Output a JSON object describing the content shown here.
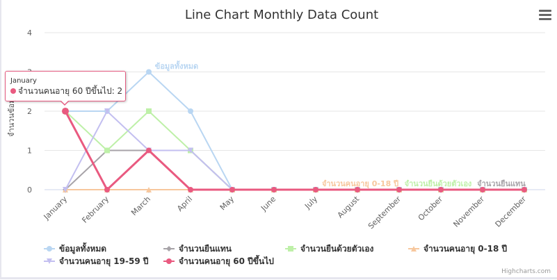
{
  "chart_data": {
    "type": "line",
    "title": "Line Chart Monthly Data Count",
    "ylabel": "จำนวนข้อมูล",
    "xlabel": "",
    "ylim": [
      0,
      4
    ],
    "yticks": [
      0,
      1,
      2,
      3,
      4
    ],
    "grid": true,
    "legend_position": "bottom",
    "categories": [
      "January",
      "February",
      "March",
      "April",
      "May",
      "June",
      "July",
      "August",
      "September",
      "October",
      "November",
      "December"
    ],
    "series": [
      {
        "name": "ข้อมูลทั้งหมด",
        "color": "#b9d6f2",
        "marker": "circle",
        "values": [
          2,
          2,
          3,
          2,
          0,
          0,
          0,
          0,
          0,
          0,
          0,
          0
        ]
      },
      {
        "name": "จำนวนยืนแทน",
        "color": "#a7a3a8",
        "marker": "diamond",
        "values": [
          0,
          1,
          1,
          1,
          0,
          0,
          0,
          0,
          0,
          0,
          0,
          0
        ]
      },
      {
        "name": "จำนวนยืนด้วยตัวเอง",
        "color": "#bef0a8",
        "marker": "square",
        "values": [
          2,
          1,
          2,
          1,
          0,
          0,
          0,
          0,
          0,
          0,
          0,
          0
        ]
      },
      {
        "name": "จำนวนคนอายุ 0-18 ปี",
        "color": "#f7c79d",
        "marker": "triangle",
        "values": [
          0,
          0,
          0,
          0,
          0,
          0,
          0,
          0,
          0,
          0,
          0,
          0
        ]
      },
      {
        "name": "จำนวนคนอายุ 19-59 ปี",
        "color": "#c3bff0",
        "marker": "triangle-down",
        "values": [
          0,
          2,
          1,
          1,
          0,
          0,
          0,
          0,
          0,
          0,
          0,
          0
        ]
      },
      {
        "name": "จำนวนคนอายุ 60 ปีขึ้นไป",
        "color": "#e95a80",
        "marker": "circle",
        "values": [
          2,
          0,
          1,
          0,
          0,
          0,
          0,
          0,
          0,
          0,
          0,
          0
        ]
      }
    ],
    "annotations": [
      {
        "series": "ข้อมูลทั้งหมด",
        "color": "#b9d6f2"
      },
      {
        "series": "จำนวนคนอายุ 0-18 ปี",
        "color": "#f7c79d"
      },
      {
        "series": "จำนวนยืนด้วยตัวเอง",
        "color": "#bef0a8"
      },
      {
        "series": "จำนวนยืนแทน",
        "color": "#a7a3a8"
      }
    ]
  },
  "tooltip": {
    "header": "January",
    "series_name": "จำนวนคนอายุ 60 ปีขึ้นไป",
    "value": "2",
    "text": "จำนวนคนอายุ 60 ปีขึ้นไป: 2",
    "color": "#e95a80"
  },
  "menu": {
    "icon": "hamburger-menu-icon"
  },
  "credits": {
    "text": "Highcharts.com"
  }
}
